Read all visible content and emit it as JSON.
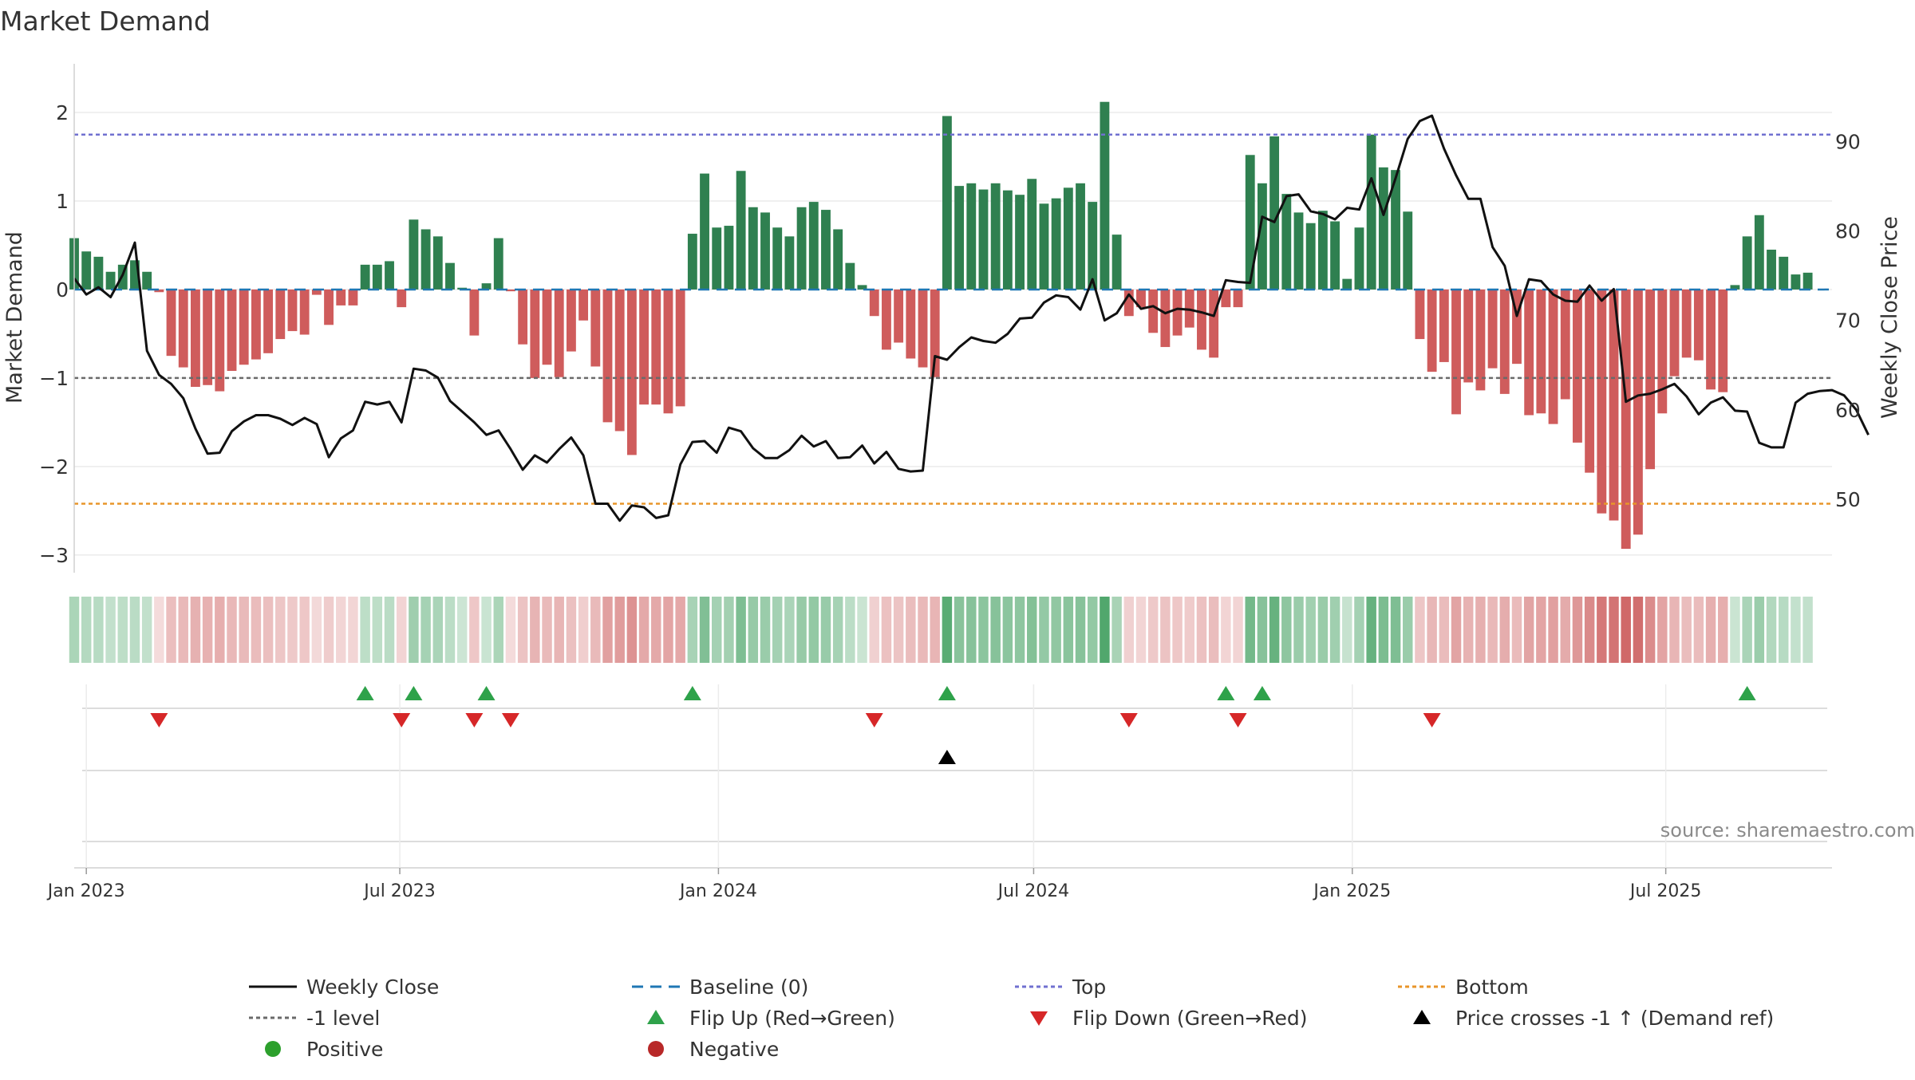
{
  "chart_data": {
    "type": "bar",
    "title": "Market Demand",
    "ylabel": "Market Demand",
    "y2label": "Weekly Close Price",
    "ylim": [
      -3.2,
      2.55
    ],
    "y2lim": [
      41.78,
      98.7
    ],
    "yticks": [
      -3,
      -2,
      -1,
      0,
      1,
      2
    ],
    "y2ticks": [
      50,
      60,
      70,
      80,
      90
    ],
    "xlim": [
      "2022-12-25",
      "2025-10-05"
    ],
    "xticks": [
      {
        "date": "2023-01-01",
        "label": "Jan 2023"
      },
      {
        "date": "2023-07-01",
        "label": "Jul 2023"
      },
      {
        "date": "2024-01-01",
        "label": "Jan 2024"
      },
      {
        "date": "2024-07-01",
        "label": "Jul 2024"
      },
      {
        "date": "2025-01-01",
        "label": "Jan 2025"
      },
      {
        "date": "2025-07-01",
        "label": "Jul 2025"
      }
    ],
    "start_date": "2022-12-25",
    "week_days": 7,
    "top_level": 1.75,
    "bottom_level": -2.42,
    "neg1_level": -1,
    "demand": [
      0.58,
      0.43,
      0.37,
      0.2,
      0.28,
      0.33,
      0.2,
      -0.03,
      -0.75,
      -0.88,
      -1.1,
      -1.08,
      -1.15,
      -0.92,
      -0.85,
      -0.79,
      -0.72,
      -0.56,
      -0.47,
      -0.51,
      -0.06,
      -0.4,
      -0.18,
      -0.18,
      0.28,
      0.28,
      0.32,
      -0.2,
      0.79,
      0.68,
      0.6,
      0.3,
      0.02,
      -0.52,
      0.07,
      0.58,
      -0.02,
      -0.62,
      -1.0,
      -0.85,
      -0.99,
      -0.7,
      -0.35,
      -0.87,
      -1.5,
      -1.6,
      -1.87,
      -1.3,
      -1.3,
      -1.4,
      -1.32,
      0.63,
      1.31,
      0.7,
      0.72,
      1.34,
      0.93,
      0.87,
      0.7,
      0.6,
      0.93,
      0.99,
      0.9,
      0.68,
      0.3,
      0.05,
      -0.3,
      -0.68,
      -0.6,
      -0.78,
      -0.88,
      -0.99,
      1.96,
      1.17,
      1.2,
      1.13,
      1.2,
      1.12,
      1.07,
      1.25,
      0.97,
      1.03,
      1.15,
      1.2,
      0.99,
      2.12,
      0.62,
      -0.3,
      -0.2,
      -0.49,
      -0.65,
      -0.52,
      -0.43,
      -0.68,
      -0.77,
      -0.2,
      -0.2,
      1.52,
      1.2,
      1.73,
      1.08,
      0.87,
      0.75,
      0.89,
      0.77,
      0.12,
      0.7,
      1.75,
      1.38,
      1.35,
      0.88,
      -0.56,
      -0.93,
      -0.82,
      -1.41,
      -1.05,
      -1.14,
      -0.89,
      -1.18,
      -0.84,
      -1.42,
      -1.4,
      -1.52,
      -1.24,
      -1.73,
      -2.07,
      -2.53,
      -2.61,
      -2.93,
      -2.77,
      -2.03,
      -1.4,
      -0.98,
      -0.77,
      -0.8,
      -1.13,
      -1.16,
      0.05,
      0.6,
      0.84,
      0.45,
      0.37,
      0.17,
      0.19
    ],
    "price": [
      74.7,
      72.9,
      73.7,
      72.6,
      75.1,
      78.7,
      66.6,
      63.9,
      62.9,
      61.3,
      57.9,
      55.1,
      55.2,
      57.6,
      58.7,
      59.4,
      59.4,
      59.0,
      58.3,
      59.1,
      58.4,
      54.7,
      56.8,
      57.7,
      60.9,
      60.6,
      60.9,
      58.6,
      64.6,
      64.4,
      63.6,
      61.0,
      59.8,
      58.6,
      57.2,
      57.7,
      55.6,
      53.3,
      54.9,
      54.1,
      55.6,
      56.9,
      54.9,
      49.5,
      49.5,
      47.6,
      49.3,
      49.1,
      47.9,
      48.2,
      53.9,
      56.4,
      56.5,
      55.2,
      58.0,
      57.6,
      55.7,
      54.6,
      54.6,
      55.5,
      57.1,
      55.9,
      56.5,
      54.6,
      54.7,
      56.0,
      54.0,
      55.3,
      53.4,
      53.1,
      53.2,
      66.0,
      65.6,
      67.0,
      68.1,
      67.7,
      67.5,
      68.5,
      70.2,
      70.3,
      72.0,
      72.8,
      72.6,
      71.2,
      74.6,
      70.0,
      70.8,
      72.9,
      71.3,
      71.6,
      70.8,
      71.3,
      71.2,
      70.9,
      70.5,
      74.5,
      74.3,
      74.2,
      81.6,
      81.0,
      83.9,
      84.1,
      82.2,
      81.9,
      81.3,
      82.6,
      82.4,
      85.9,
      81.8,
      85.9,
      90.3,
      92.3,
      92.9,
      89.2,
      86.2,
      83.6,
      83.6,
      78.2,
      76.1,
      70.5,
      74.6,
      74.4,
      72.9,
      72.2,
      72.1,
      73.9,
      72.2,
      73.5,
      60.9,
      61.6,
      61.8,
      62.3,
      62.9,
      61.5,
      59.5,
      60.8,
      61.4,
      59.9,
      59.8,
      56.3,
      55.8,
      55.8,
      60.8,
      61.8,
      62.1,
      62.2,
      61.6,
      60.0,
      57.2
    ]
  },
  "flip_up": {
    "name": "Flip Up (Red→Green)",
    "weeks": [
      24,
      28,
      34,
      51,
      72,
      95,
      98,
      138
    ]
  },
  "flip_down": {
    "name": "Flip Down (Green→Red)",
    "weeks": [
      7,
      27,
      33,
      36,
      66,
      87,
      96,
      112
    ]
  },
  "price_cross": {
    "name": "Price crosses -1 ↑ (Demand ref)",
    "weeks": [
      72
    ]
  },
  "watermark": "source: sharemaestro.com",
  "colors": {
    "positive_bar": "#2f8050",
    "negative_bar": "#cf5c5c",
    "baseline": "#1f77b4",
    "top": "#7070d0",
    "bottom": "#e8952a",
    "neg1": "#6a6a6a",
    "price": "#111111",
    "flip_up": "#2ea24a",
    "flip_down": "#d62728",
    "positive_dot": "#2ca02c",
    "negative_dot": "#b82828"
  },
  "legend": [
    {
      "label": "Weekly Close",
      "type": "solid-line",
      "color": "#111111"
    },
    {
      "label": "Baseline (0)",
      "type": "dashed-line",
      "color": "#1f77b4"
    },
    {
      "label": "Top",
      "type": "dotted-line",
      "color": "#7070d0"
    },
    {
      "label": "Bottom",
      "type": "dotted-line",
      "color": "#e8952a"
    },
    {
      "label": "-1 level",
      "type": "dotted-line",
      "color": "#6a6a6a"
    },
    {
      "label": "Flip Up (Red→Green)",
      "type": "tri-up",
      "color": "#2ea24a"
    },
    {
      "label": "Flip Down (Green→Red)",
      "type": "tri-down",
      "color": "#d62728"
    },
    {
      "label": "Price crosses -1 ↑ (Demand ref)",
      "type": "tri-up",
      "color": "#000000"
    },
    {
      "label": "Positive",
      "type": "dot",
      "color": "#2ca02c"
    },
    {
      "label": "Negative",
      "type": "dot",
      "color": "#b82828"
    }
  ]
}
